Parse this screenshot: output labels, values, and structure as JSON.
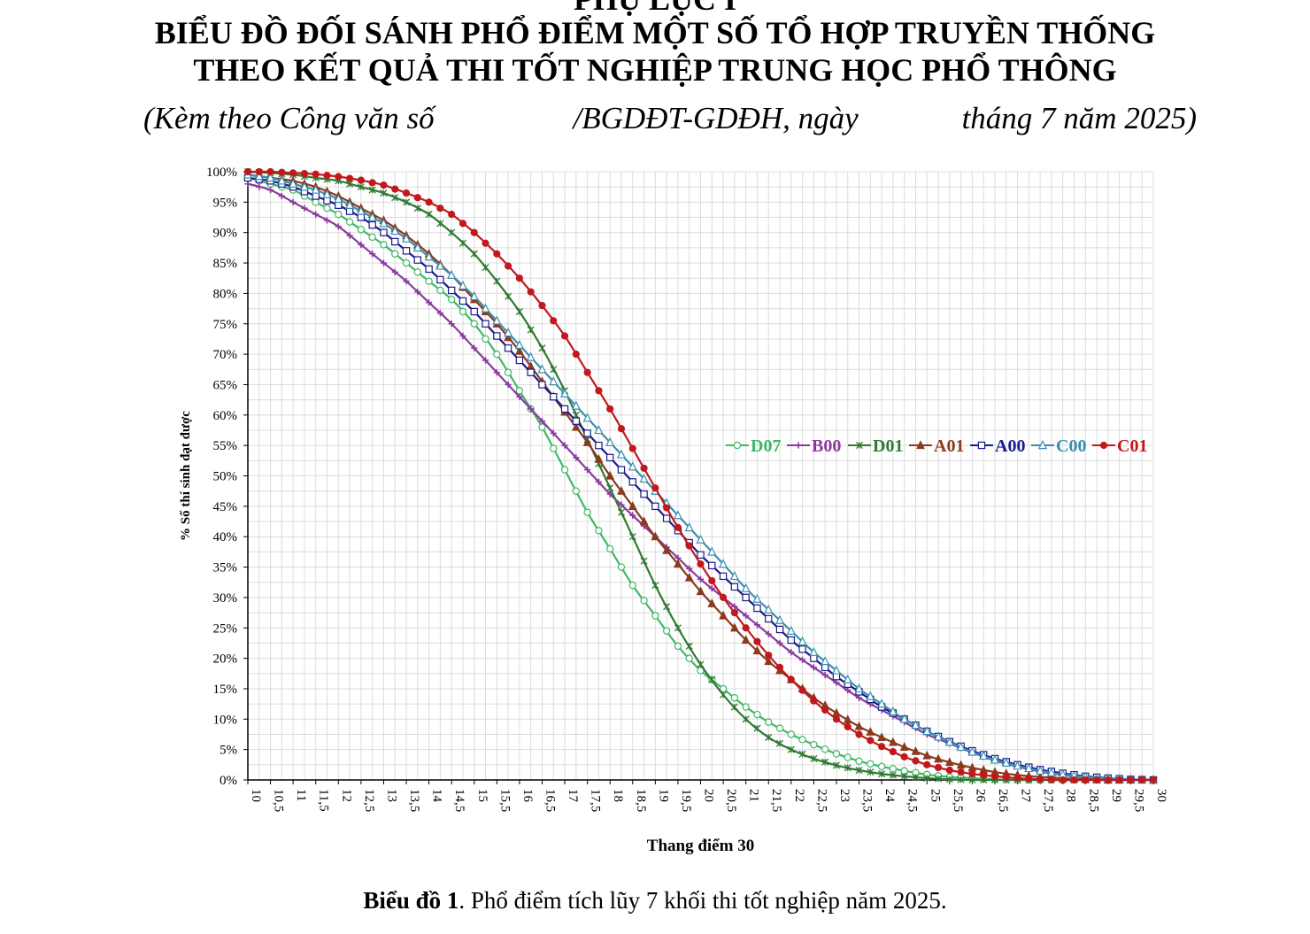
{
  "header": {
    "cut_title": "PHỤ LỤC I",
    "title_line1": "BIỂU ĐỒ ĐỐI SÁNH PHỔ ĐIỂM MỘT SỐ TỔ HỢP TRUYỀN THỐNG",
    "title_line2": "THEO KẾT QUẢ THI TỐT NGHIỆP TRUNG HỌC PHỔ THÔNG",
    "subtitle_part1": "(Kèm theo Công văn số",
    "subtitle_part2": "/BGDĐT-GDĐH, ngày",
    "subtitle_part3": "tháng 7 năm 2025)"
  },
  "caption": {
    "label": "Biểu đồ 1",
    "text": ". Phổ điểm tích lũy 7 khối thi tốt nghiệp năm 2025."
  },
  "chart_data": {
    "type": "line",
    "xlabel": "Thang điểm 30",
    "ylabel": "% Số thí sinh đạt được",
    "xlim": [
      10,
      30
    ],
    "ylim": [
      0,
      100
    ],
    "x_ticks": [
      "10",
      "10,5",
      "11",
      "11,5",
      "12",
      "12,5",
      "13",
      "13,5",
      "14",
      "14,5",
      "15",
      "15,5",
      "16",
      "16,5",
      "17",
      "17,5",
      "18",
      "18,5",
      "19",
      "19,5",
      "20",
      "20,5",
      "21",
      "21,5",
      "22",
      "22,5",
      "23",
      "23,5",
      "24",
      "24,5",
      "25",
      "25,5",
      "26",
      "26,5",
      "27",
      "27,5",
      "28",
      "28,5",
      "29",
      "29,5",
      "30"
    ],
    "y_ticks": [
      "0%",
      "5%",
      "10%",
      "15%",
      "20%",
      "25%",
      "30%",
      "35%",
      "40%",
      "45%",
      "50%",
      "55%",
      "60%",
      "65%",
      "70%",
      "75%",
      "80%",
      "85%",
      "90%",
      "95%",
      "100%"
    ],
    "legend_position": "right-middle",
    "grid": true,
    "x": [
      10,
      10.5,
      11,
      11.5,
      12,
      12.5,
      13,
      13.5,
      14,
      14.5,
      15,
      15.5,
      16,
      16.5,
      17,
      17.5,
      18,
      18.5,
      19,
      19.5,
      20,
      20.5,
      21,
      21.5,
      22,
      22.5,
      23,
      23.5,
      24,
      24.5,
      25,
      25.5,
      26,
      26.5,
      27,
      27.5,
      28,
      28.5,
      29,
      29.5,
      30
    ],
    "series": [
      {
        "name": "D07",
        "color": "#3fb866",
        "marker": "circle-open",
        "values": [
          99,
          98,
          97,
          95,
          93,
          90.5,
          88,
          85,
          82,
          79,
          75,
          70,
          64,
          58,
          51,
          44,
          38,
          32,
          27,
          22,
          18,
          15,
          12,
          9.5,
          7.5,
          5.8,
          4.3,
          3.1,
          2.2,
          1.5,
          0.9,
          0.5,
          0.3,
          0.1,
          0,
          0,
          0,
          0,
          0,
          0,
          0
        ]
      },
      {
        "name": "B00",
        "color": "#8b3a9e",
        "marker": "plus",
        "values": [
          98,
          97,
          95,
          93,
          91,
          88,
          85,
          82,
          78.5,
          75,
          71,
          67,
          63,
          59,
          55,
          51,
          47,
          43.5,
          40,
          36.5,
          33,
          30,
          27,
          24,
          21,
          18.5,
          16,
          13.5,
          11.5,
          9.5,
          7.5,
          6,
          4.5,
          3.2,
          2.2,
          1.4,
          0.8,
          0.4,
          0.2,
          0.1,
          0
        ]
      },
      {
        "name": "D01",
        "color": "#2f7a32",
        "marker": "star",
        "values": [
          100,
          99.8,
          99.5,
          99,
          98.5,
          97.5,
          96.5,
          95,
          93,
          90,
          86.5,
          82,
          77,
          71,
          64,
          56,
          48,
          40,
          32,
          25,
          19,
          14,
          10,
          7,
          5,
          3.5,
          2.4,
          1.6,
          1,
          0.6,
          0.3,
          0.1,
          0,
          0,
          0,
          0,
          0,
          0,
          0,
          0,
          0
        ]
      },
      {
        "name": "A01",
        "color": "#8b3a1e",
        "marker": "triangle-filled",
        "values": [
          99.5,
          99,
          98.5,
          97.5,
          96,
          94,
          92,
          89.5,
          86.5,
          83,
          79,
          75,
          70.5,
          65.5,
          60.5,
          55.5,
          50,
          45,
          40,
          35.5,
          31,
          27,
          23,
          19.5,
          16.5,
          13.5,
          11,
          8.8,
          7,
          5.4,
          4,
          2.9,
          2,
          1.3,
          0.8,
          0.5,
          0.3,
          0.1,
          0,
          0,
          0
        ]
      },
      {
        "name": "A00",
        "color": "#1a1a8c",
        "marker": "square-open",
        "values": [
          99,
          98.5,
          97.5,
          96,
          94.5,
          92.5,
          90,
          87,
          84,
          80.5,
          77,
          73,
          69,
          65,
          61,
          57,
          53,
          49,
          45,
          41,
          37,
          33.5,
          30,
          26.5,
          23,
          20,
          17,
          14.5,
          12,
          10,
          8,
          6.3,
          4.8,
          3.5,
          2.5,
          1.7,
          1.1,
          0.6,
          0.3,
          0.1,
          0
        ]
      },
      {
        "name": "C00",
        "color": "#3a8fb0",
        "marker": "triangle-open",
        "values": [
          99.5,
          99,
          98,
          97,
          95.5,
          93.5,
          91.5,
          89,
          86,
          83,
          79.5,
          75.5,
          71.5,
          67.5,
          63.5,
          59.5,
          55.5,
          51.5,
          47.5,
          43.5,
          39.5,
          35.5,
          31.5,
          28,
          24.5,
          21,
          18,
          15,
          12.5,
          10,
          8,
          6.2,
          4.6,
          3.3,
          2.3,
          1.5,
          0.9,
          0.5,
          0.2,
          0.1,
          0
        ]
      },
      {
        "name": "C01",
        "color": "#c0191c",
        "marker": "circle-filled",
        "values": [
          100,
          100,
          99.8,
          99.6,
          99.2,
          98.6,
          97.8,
          96.5,
          95,
          93,
          90,
          86.5,
          82.5,
          78,
          73,
          67,
          61,
          54.5,
          48,
          41.5,
          35.5,
          30,
          25,
          20.5,
          16.5,
          13,
          10,
          7.5,
          5.5,
          3.8,
          2.5,
          1.6,
          1,
          0.6,
          0.3,
          0.1,
          0,
          0,
          0,
          0,
          0
        ]
      }
    ]
  }
}
